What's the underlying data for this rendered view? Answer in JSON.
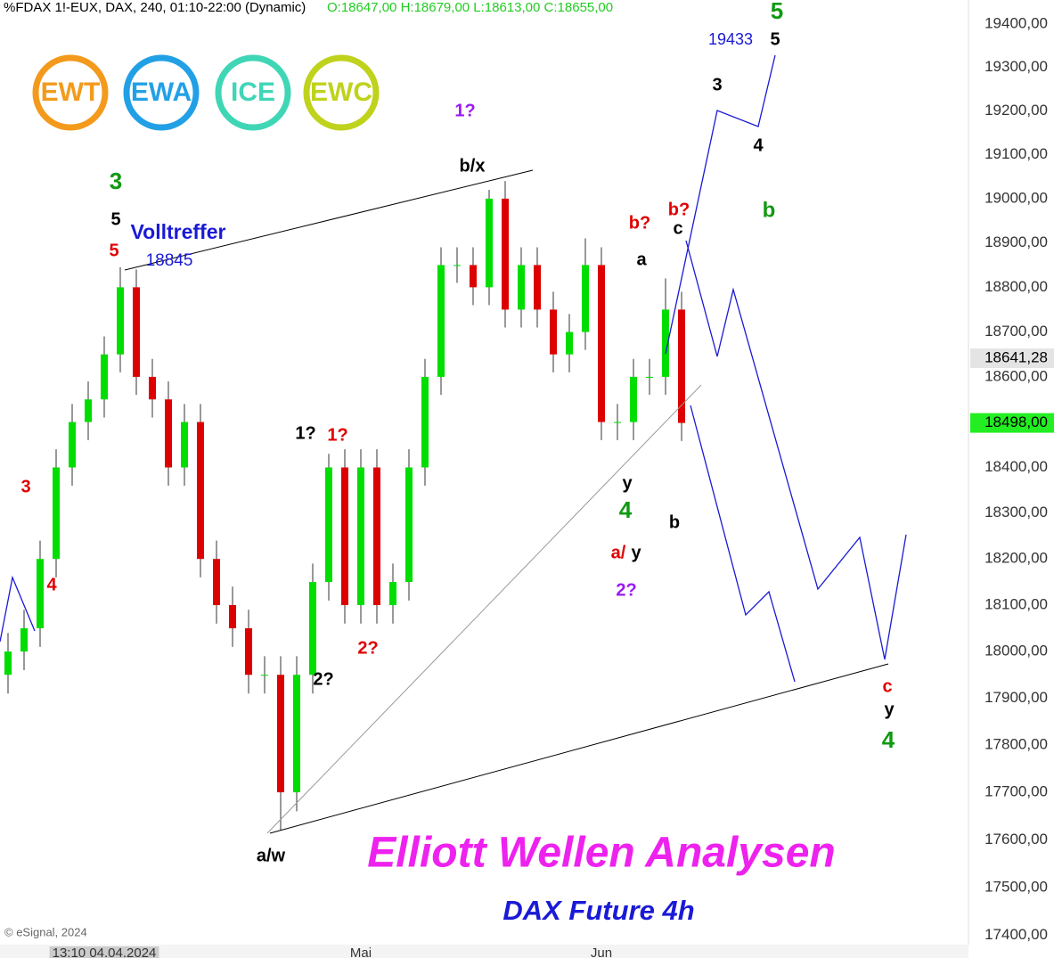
{
  "chart_data": {
    "type": "candlestick",
    "title": "%FDAX 1!-EUX, DAX, 240, 01:10-22:00 (Dynamic)",
    "ohlc_text": "O:18647,00 H:18679,00 L:18613,00 C:18655,00",
    "source": "© eSignal, 2024",
    "log_scale": true,
    "grid": false,
    "up_color": "#00dd00",
    "down_color": "#dd0000",
    "ylim": [
      17381,
      19456
    ],
    "yticks": [
      {
        "value": 17400,
        "label": "17400,00"
      },
      {
        "value": 17500,
        "label": "17500,00"
      },
      {
        "value": 17600,
        "label": "17600,00"
      },
      {
        "value": 17700,
        "label": "17700,00"
      },
      {
        "value": 17800,
        "label": "17800,00"
      },
      {
        "value": 17900,
        "label": "17900,00"
      },
      {
        "value": 18000,
        "label": "18000,00"
      },
      {
        "value": 18100,
        "label": "18100,00"
      },
      {
        "value": 18200,
        "label": "18200,00"
      },
      {
        "value": 18300,
        "label": "18300,00"
      },
      {
        "value": 18400,
        "label": "18400,00"
      },
      {
        "value": 18500,
        "label": "18500,00"
      },
      {
        "value": 18600,
        "label": "18600,00"
      },
      {
        "value": 18700,
        "label": "18700,00"
      },
      {
        "value": 18800,
        "label": "18800,00"
      },
      {
        "value": 18900,
        "label": "18900,00"
      },
      {
        "value": 19000,
        "label": "19000,00"
      },
      {
        "value": 19100,
        "label": "19100,00"
      },
      {
        "value": 19200,
        "label": "19200,00"
      },
      {
        "value": 19300,
        "label": "19300,00"
      },
      {
        "value": 19400,
        "label": "19400,00"
      }
    ],
    "price_markers": [
      {
        "value": 18641.28,
        "label": "18641,28"
      },
      {
        "value": 18498,
        "label": "18498,00"
      }
    ],
    "categories": [
      null,
      null,
      null,
      null,
      null,
      null,
      "13:10 04.04.2024",
      null,
      null,
      null,
      null,
      null,
      null,
      null,
      null,
      null,
      null,
      null,
      null,
      null,
      null,
      null,
      "Mai",
      null,
      null,
      null,
      null,
      null,
      null,
      null,
      null,
      null,
      null,
      null,
      null,
      null,
      null,
      "Jun",
      null,
      null,
      null,
      null,
      null
    ],
    "open": [
      17950,
      18000,
      18050,
      18200,
      18400,
      18500,
      18550,
      18650,
      18800,
      18600,
      18550,
      18400,
      18500,
      18200,
      18100,
      18050,
      17950,
      17950,
      17700,
      17950,
      18150,
      18400,
      18100,
      18400,
      18100,
      18150,
      18400,
      18600,
      18850,
      18850,
      18800,
      19000,
      18750,
      18850,
      18750,
      18650,
      18700,
      18850,
      18500,
      18500,
      18600,
      18600,
      18750
    ],
    "high": [
      18040,
      18090,
      18240,
      18440,
      18540,
      18590,
      18690,
      18845,
      18840,
      18640,
      18590,
      18540,
      18540,
      18240,
      18140,
      18090,
      17990,
      17990,
      17990,
      18190,
      18430,
      18440,
      18440,
      18440,
      18190,
      18440,
      18640,
      18890,
      18890,
      18890,
      19020,
      19040,
      18890,
      18890,
      18790,
      18740,
      18910,
      18890,
      18540,
      18640,
      18640,
      18820,
      18790
    ],
    "low": [
      17910,
      17960,
      18010,
      18160,
      18360,
      18460,
      18510,
      18610,
      18560,
      18510,
      18360,
      18360,
      18160,
      18060,
      18010,
      17910,
      17910,
      17620,
      17660,
      17910,
      18110,
      18060,
      18060,
      18060,
      18060,
      18110,
      18360,
      18560,
      18810,
      18760,
      18760,
      18710,
      18710,
      18710,
      18610,
      18610,
      18660,
      18460,
      18460,
      18460,
      18560,
      18560,
      18458
    ],
    "close": [
      18000,
      18050,
      18200,
      18400,
      18500,
      18550,
      18650,
      18800,
      18600,
      18550,
      18400,
      18500,
      18200,
      18100,
      18050,
      17950,
      17950,
      17700,
      17950,
      18150,
      18400,
      18100,
      18400,
      18100,
      18150,
      18400,
      18600,
      18850,
      18850,
      18800,
      19000,
      18750,
      18850,
      18750,
      18650,
      18700,
      18850,
      18500,
      18500,
      18600,
      18600,
      18750,
      18498
    ],
    "logos": [
      "EWT",
      "EWA",
      "ICE",
      "EWC"
    ],
    "annotations": [
      "3",
      "5",
      "5",
      "Volltreffer",
      "18845",
      "b/x",
      "1?",
      "1?",
      "1?",
      "2?",
      "2?",
      "3",
      "4",
      "b?",
      "b?",
      "c",
      "a",
      "y",
      "4",
      "a/",
      "y",
      "2?",
      "b",
      "19433",
      "5",
      "5",
      "3",
      "4",
      "b",
      "c",
      "y",
      "4",
      "a/w",
      "Elliott Wellen Analysen",
      "DAX Future 4h"
    ]
  }
}
